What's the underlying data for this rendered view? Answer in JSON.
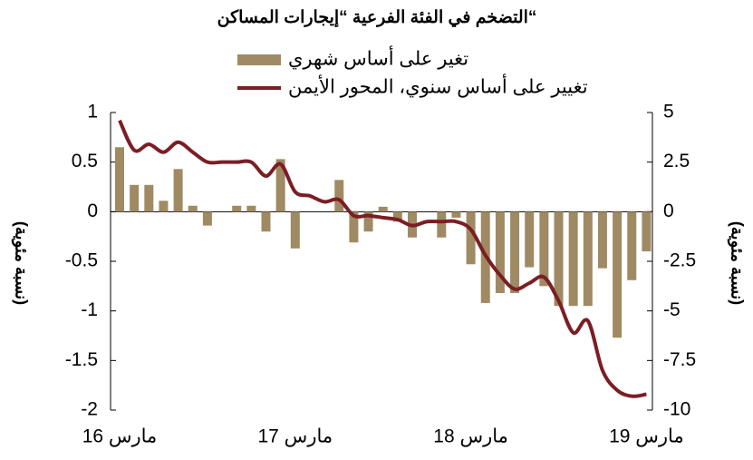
{
  "chart_data": {
    "type": "bar_line",
    "title": "التضخم في الفئة الفرعية “إيجارات المساكن“",
    "ylabel": "(نسبة مئوية)",
    "y2label": "(نسبة مئوية)",
    "categories": [
      "مارس 16",
      null,
      null,
      null,
      null,
      null,
      null,
      null,
      null,
      null,
      null,
      null,
      "مارس 17",
      null,
      null,
      null,
      null,
      null,
      null,
      null,
      null,
      null,
      null,
      null,
      "مارس 18",
      null,
      null,
      null,
      null,
      null,
      null,
      null,
      null,
      null,
      null,
      null,
      "مارس 19"
    ],
    "series": [
      {
        "name": "تغير على أساس شهري",
        "type": "bar",
        "color": "#9f8a63",
        "values": [
          0.65,
          0.27,
          0.27,
          0.11,
          0.43,
          0.06,
          -0.14,
          0,
          0.06,
          0.06,
          -0.2,
          0.53,
          -0.37,
          0,
          0,
          0.32,
          -0.31,
          -0.2,
          0.05,
          -0.1,
          -0.26,
          0,
          -0.26,
          -0.06,
          -0.53,
          -0.92,
          -0.82,
          -0.82,
          -0.56,
          -0.75,
          -0.95,
          -0.95,
          -0.95,
          -0.57,
          -1.27,
          -0.69,
          -0.4
        ]
      },
      {
        "name": "تغيير على أساس سنوي، المحور الأيمن",
        "type": "line",
        "axis": "y2",
        "color": "#7b1e24",
        "values": [
          4.6,
          3.1,
          3.4,
          3.0,
          3.5,
          3.0,
          2.5,
          2.5,
          2.5,
          2.5,
          1.8,
          2.4,
          1.0,
          0.8,
          0.5,
          0.6,
          -0.2,
          -0.2,
          -0.3,
          -0.4,
          -0.7,
          -0.5,
          -0.5,
          -0.5,
          -0.9,
          -2.2,
          -3.2,
          -3.9,
          -3.6,
          -3.3,
          -4.5,
          -6.1,
          -5.5,
          -8.0,
          -9.0,
          -9.3,
          -9.2
        ]
      }
    ],
    "ylim": [
      -2,
      1
    ],
    "yticks": [
      1,
      0.5,
      0,
      -0.5,
      -1,
      -1.5,
      -2
    ],
    "y2lim": [
      -10,
      5
    ],
    "y2ticks": [
      5,
      2.5,
      0,
      -2.5,
      -5,
      -7.5,
      -10
    ],
    "grid": false
  }
}
